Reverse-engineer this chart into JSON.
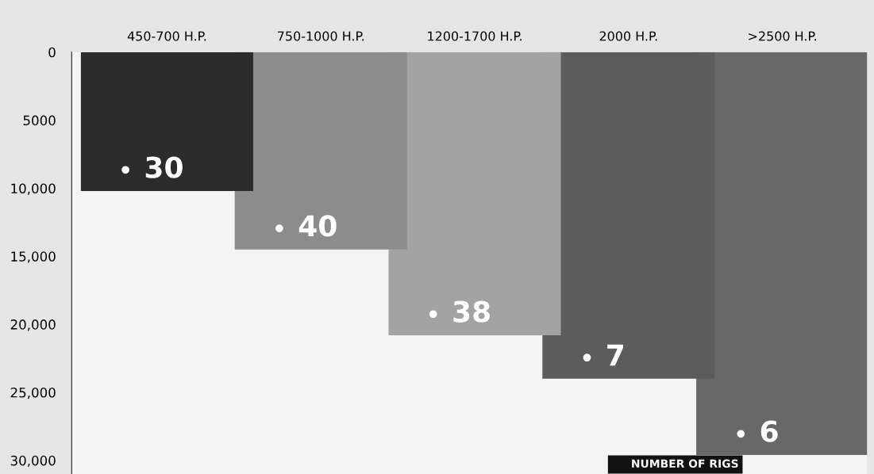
{
  "chart_data": {
    "type": "bar",
    "categories": [
      "450-700 H.P.",
      "750-1000 H.P.",
      "1200-1700 H.P.",
      "2000 H.P.",
      ">2500 H.P."
    ],
    "values": [
      10200,
      14500,
      20800,
      24000,
      29600
    ],
    "colors": [
      "#2b2b2b",
      "#8c8c8c",
      "#a3a3a3",
      "#5c5c5c",
      "#686868"
    ],
    "ylim": [
      31000,
      0
    ],
    "yticks": [
      0,
      5000,
      {
        "value": 10000,
        "label": "10,000"
      },
      {
        "value": 15000,
        "label": "15,000"
      },
      {
        "value": 20000,
        "label": "20,000"
      },
      {
        "value": 25000,
        "label": "25,000"
      },
      {
        "value": 30000,
        "label": "30,000"
      }
    ],
    "grid": false,
    "annotations": [
      {
        "text": "30",
        "x": "450-700 H.P.",
        "y": 10200
      },
      {
        "text": "40",
        "x": "750-1000 H.P.",
        "y": 14500
      },
      {
        "text": "38",
        "x": "1200-1700 H.P.",
        "y": 20800
      },
      {
        "text": "7",
        "x": "2000 H.P.",
        "y": 24000
      },
      {
        "text": "6",
        "x": ">2500 H.P.",
        "y": 29600
      },
      "NUMBER OF RIGS"
    ]
  }
}
